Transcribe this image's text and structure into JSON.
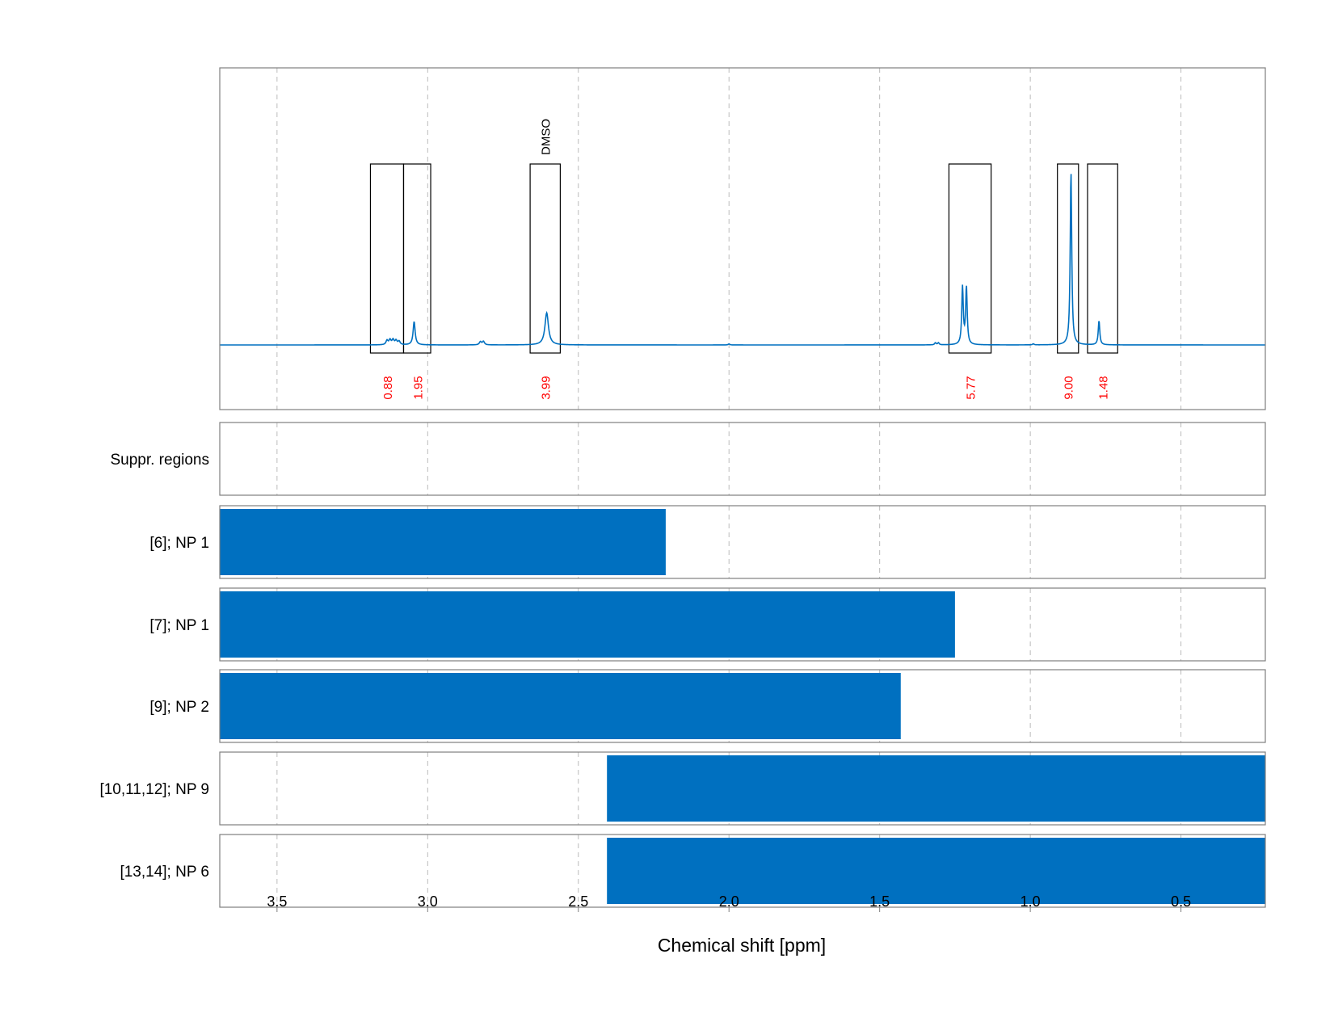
{
  "chart_data": {
    "type": "line",
    "xlabel": "Chemical shift [ppm]",
    "xlim": [
      3.69,
      0.22
    ],
    "x_reversed": true,
    "x_ticks": [
      3.5,
      3.0,
      2.5,
      2.0,
      1.5,
      1.0,
      0.5
    ],
    "x_tick_labels": [
      "3.5",
      "3.0",
      "2.5",
      "2.0",
      "1.5",
      "1.0",
      "0.5"
    ],
    "grid": true,
    "spectrum": {
      "color": "#0070c0",
      "baseline": 0,
      "ylim": [
        -0.1,
        1.0
      ],
      "peaks": [
        {
          "x": 3.135,
          "height": 0.025,
          "width": 0.004
        },
        {
          "x": 3.125,
          "height": 0.028,
          "width": 0.004
        },
        {
          "x": 3.115,
          "height": 0.028,
          "width": 0.004
        },
        {
          "x": 3.105,
          "height": 0.024,
          "width": 0.004
        },
        {
          "x": 3.095,
          "height": 0.02,
          "width": 0.004
        },
        {
          "x": 3.045,
          "height": 0.135,
          "width": 0.004
        },
        {
          "x": 2.825,
          "height": 0.018,
          "width": 0.004
        },
        {
          "x": 2.815,
          "height": 0.02,
          "width": 0.004
        },
        {
          "x": 2.605,
          "height": 0.185,
          "width": 0.007
        },
        {
          "x": 2.0,
          "height": 0.006,
          "width": 0.003
        },
        {
          "x": 1.315,
          "height": 0.012,
          "width": 0.003
        },
        {
          "x": 1.305,
          "height": 0.012,
          "width": 0.003
        },
        {
          "x": 1.225,
          "height": 0.33,
          "width": 0.003
        },
        {
          "x": 1.212,
          "height": 0.33,
          "width": 0.003
        },
        {
          "x": 0.99,
          "height": 0.006,
          "width": 0.003
        },
        {
          "x": 0.865,
          "height": 1.0,
          "width": 0.003
        },
        {
          "x": 0.772,
          "height": 0.14,
          "width": 0.003
        }
      ]
    },
    "integration_regions": [
      {
        "x_start": 3.19,
        "x_end": 3.08,
        "label": "0.88"
      },
      {
        "x_start": 3.08,
        "x_end": 2.99,
        "label": "1.95"
      },
      {
        "x_start": 2.66,
        "x_end": 2.56,
        "label": "3.99"
      },
      {
        "x_start": 1.27,
        "x_end": 1.13,
        "label": "5.77"
      },
      {
        "x_start": 0.91,
        "x_end": 0.84,
        "label": "9.00"
      },
      {
        "x_start": 0.81,
        "x_end": 0.71,
        "label": "1.48"
      }
    ],
    "annotations": [
      {
        "text": "DMSO",
        "x": 2.61
      }
    ],
    "integral_label_color": "#ff0000",
    "bar_color": "#0070c0",
    "tracks": [
      {
        "label": "Suppr. regions",
        "spans": []
      },
      {
        "label": "[6]; NP 1",
        "spans": [
          [
            3.69,
            2.21
          ]
        ]
      },
      {
        "label": "[7]; NP 1",
        "spans": [
          [
            3.69,
            1.25
          ]
        ]
      },
      {
        "label": "[9]; NP 2",
        "spans": [
          [
            3.69,
            1.43
          ]
        ]
      },
      {
        "label": "[10,11,12]; NP 9",
        "spans": [
          [
            2.405,
            0.22
          ]
        ]
      },
      {
        "label": "[13,14]; NP 6",
        "spans": [
          [
            2.405,
            0.22
          ]
        ]
      }
    ]
  }
}
